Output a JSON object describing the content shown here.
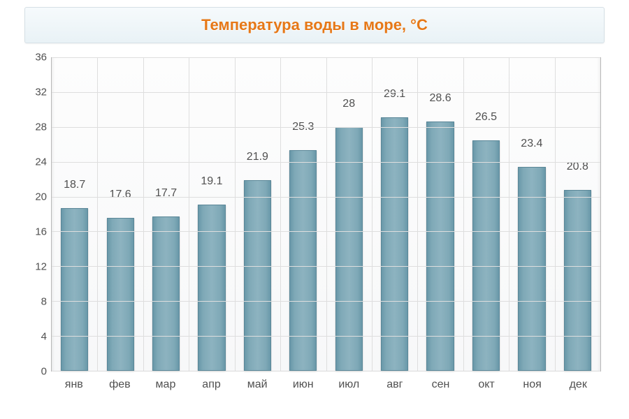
{
  "chart": {
    "type": "bar",
    "title": "Температура воды в море, °C",
    "title_color": "#e67817",
    "title_fontsize": 22,
    "background_color": "#fafbfc",
    "grid_color": "#dedede",
    "axis_line_color": "#b8b8b8",
    "bar_color": "#7ca7b6",
    "bar_border_color": "#5a8798",
    "text_color": "#505050",
    "label_fontsize": 16,
    "bar_width": 0.6,
    "ylim": [
      0,
      36
    ],
    "ytick_step": 4,
    "categories": [
      "янв",
      "фев",
      "мар",
      "апр",
      "май",
      "июн",
      "июл",
      "авг",
      "сен",
      "окт",
      "ноя",
      "дек"
    ],
    "values": [
      18.7,
      17.6,
      17.7,
      19.1,
      21.9,
      25.3,
      28,
      29.1,
      28.6,
      26.5,
      23.4,
      20.8
    ]
  }
}
